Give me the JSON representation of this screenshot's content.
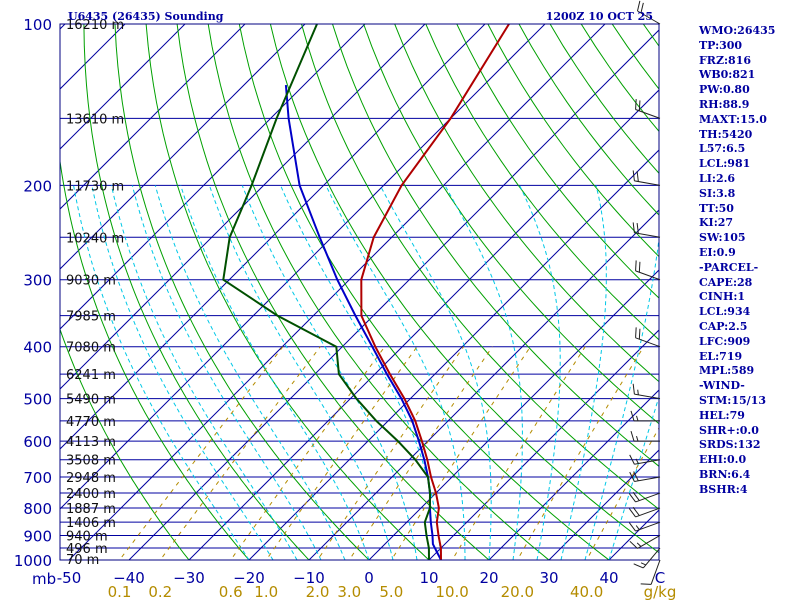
{
  "header": {
    "station": "U6435 (26435) Sounding",
    "time": "1200Z 10 OCT 25"
  },
  "colors": {
    "isobar": "#0000a0",
    "isotherm": "#0000a0",
    "dry_adiabat": "#00a000",
    "moist_adiabat": "#00c8e6",
    "mixing_ratio": "#b48c00",
    "temperature": "#b00000",
    "dewpoint": "#005000",
    "parcel": "#0000c8",
    "wind": "#202020"
  },
  "chart_data": {
    "type": "skew-t",
    "title": "U6435 (26435) Sounding",
    "x_unit": "°C",
    "y_unit": "mb",
    "xlim": [
      -50,
      50
    ],
    "ylim": [
      1000,
      100
    ],
    "pressure_levels": [
      1000,
      900,
      800,
      700,
      600,
      500,
      400,
      300,
      200,
      100
    ],
    "pressure_tick_labels": [
      "1000",
      "900",
      "800",
      "700",
      "600",
      "500",
      "400",
      "300",
      "200",
      "100"
    ],
    "pressure_axis_unit_label": "mb",
    "temperature_ticks": [
      -50,
      -40,
      -30,
      -20,
      -10,
      0,
      10,
      20,
      30,
      40
    ],
    "temperature_tick_labels": [
      "-50",
      "−40",
      "−30",
      "−20",
      "−10",
      "0",
      "10",
      "20",
      "30",
      "40"
    ],
    "mixing_ratio_values": [
      0.1,
      0.2,
      0.6,
      1.0,
      2.0,
      3.0,
      5.0,
      10.0,
      20.0,
      40.0
    ],
    "mixing_ratio_labels": [
      "0.1",
      "0.2",
      "0.6",
      "1.0",
      "2.0",
      "3.0",
      "5.0",
      "10.0",
      "20.0",
      "40.0"
    ],
    "mixing_ratio_unit_label": "g/kg",
    "height_levels": [
      {
        "p": 996,
        "label": "70 m"
      },
      {
        "p": 950,
        "label": "496 m"
      },
      {
        "p": 900,
        "label": "940 m"
      },
      {
        "p": 850,
        "label": "1406 m"
      },
      {
        "p": 800,
        "label": "1887 m"
      },
      {
        "p": 750,
        "label": "2400 m"
      },
      {
        "p": 700,
        "label": "2948 m"
      },
      {
        "p": 650,
        "label": "3508 m"
      },
      {
        "p": 600,
        "label": "4113 m"
      },
      {
        "p": 550,
        "label": "4770 m"
      },
      {
        "p": 500,
        "label": "5490 m"
      },
      {
        "p": 450,
        "label": "6241 m"
      },
      {
        "p": 400,
        "label": "7080 m"
      },
      {
        "p": 350,
        "label": "7985 m"
      },
      {
        "p": 300,
        "label": "9030 m"
      },
      {
        "p": 250,
        "label": "10240 m"
      },
      {
        "p": 200,
        "label": "11730 m"
      },
      {
        "p": 150,
        "label": "13610 m"
      },
      {
        "p": 100,
        "label": "16210 m"
      }
    ],
    "temperature_profile": [
      {
        "p": 1000,
        "t": 12.0
      },
      {
        "p": 950,
        "t": 10.0
      },
      {
        "p": 900,
        "t": 7.5
      },
      {
        "p": 850,
        "t": 5.0
      },
      {
        "p": 800,
        "t": 3.0
      },
      {
        "p": 750,
        "t": 0.0
      },
      {
        "p": 700,
        "t": -3.5
      },
      {
        "p": 650,
        "t": -7.0
      },
      {
        "p": 600,
        "t": -11.0
      },
      {
        "p": 550,
        "t": -15.5
      },
      {
        "p": 500,
        "t": -21.0
      },
      {
        "p": 450,
        "t": -27.5
      },
      {
        "p": 400,
        "t": -34.5
      },
      {
        "p": 350,
        "t": -42.0
      },
      {
        "p": 300,
        "t": -48.0
      },
      {
        "p": 250,
        "t": -53.0
      },
      {
        "p": 200,
        "t": -57.0
      },
      {
        "p": 150,
        "t": -60.0
      },
      {
        "p": 100,
        "t": -66.0
      }
    ],
    "dewpoint_profile": [
      {
        "p": 1000,
        "t": 10.0
      },
      {
        "p": 950,
        "t": 8.0
      },
      {
        "p": 900,
        "t": 5.5
      },
      {
        "p": 850,
        "t": 3.0
      },
      {
        "p": 800,
        "t": 1.5
      },
      {
        "p": 750,
        "t": -1.0
      },
      {
        "p": 700,
        "t": -4.0
      },
      {
        "p": 650,
        "t": -9.0
      },
      {
        "p": 600,
        "t": -15.0
      },
      {
        "p": 550,
        "t": -22.0
      },
      {
        "p": 500,
        "t": -29.0
      },
      {
        "p": 450,
        "t": -36.0
      },
      {
        "p": 400,
        "t": -41.0
      },
      {
        "p": 350,
        "t": -56.0
      },
      {
        "p": 300,
        "t": -71.0
      },
      {
        "p": 250,
        "t": -77.0
      },
      {
        "p": 200,
        "t": -82.0
      },
      {
        "p": 150,
        "t": -89.0
      },
      {
        "p": 100,
        "t": -98.0
      }
    ],
    "parcel_profile": [
      {
        "p": 1000,
        "t": 12.0
      },
      {
        "p": 950,
        "t": 9.0
      },
      {
        "p": 934,
        "t": 8.0
      },
      {
        "p": 900,
        "t": 6.5
      },
      {
        "p": 850,
        "t": 4.0
      },
      {
        "p": 800,
        "t": 1.5
      },
      {
        "p": 750,
        "t": -1.0
      },
      {
        "p": 700,
        "t": -4.0
      },
      {
        "p": 650,
        "t": -7.5
      },
      {
        "p": 600,
        "t": -11.5
      },
      {
        "p": 550,
        "t": -16.0
      },
      {
        "p": 500,
        "t": -21.5
      },
      {
        "p": 450,
        "t": -28.0
      },
      {
        "p": 400,
        "t": -35.0
      },
      {
        "p": 350,
        "t": -43.0
      },
      {
        "p": 300,
        "t": -52.0
      },
      {
        "p": 250,
        "t": -62.0
      },
      {
        "p": 200,
        "t": -74.0
      },
      {
        "p": 150,
        "t": -87.0
      },
      {
        "p": 130,
        "t": -93.0
      }
    ],
    "wind_barbs": [
      {
        "p": 1000,
        "dir": 200,
        "kt": 10
      },
      {
        "p": 950,
        "dir": 220,
        "kt": 15
      },
      {
        "p": 900,
        "dir": 240,
        "kt": 15
      },
      {
        "p": 850,
        "dir": 250,
        "kt": 15
      },
      {
        "p": 800,
        "dir": 250,
        "kt": 20
      },
      {
        "p": 750,
        "dir": 250,
        "kt": 20
      },
      {
        "p": 700,
        "dir": 260,
        "kt": 20
      },
      {
        "p": 650,
        "dir": 260,
        "kt": 15
      },
      {
        "p": 600,
        "dir": 270,
        "kt": 15
      },
      {
        "p": 550,
        "dir": 270,
        "kt": 15
      },
      {
        "p": 500,
        "dir": 280,
        "kt": 15
      },
      {
        "p": 400,
        "dir": 290,
        "kt": 20
      },
      {
        "p": 300,
        "dir": 290,
        "kt": 20
      },
      {
        "p": 250,
        "dir": 280,
        "kt": 20
      },
      {
        "p": 200,
        "dir": 280,
        "kt": 20
      },
      {
        "p": 150,
        "dir": 290,
        "kt": 20
      },
      {
        "p": 100,
        "dir": 300,
        "kt": 20
      }
    ]
  },
  "indices": [
    "WMO:26435",
    "TP:300",
    "FRZ:816",
    "WB0:821",
    "PW:0.80",
    "RH:88.9",
    "MAXT:15.0",
    "TH:5420",
    "L57:6.5",
    "LCL:981",
    "LI:2.6",
    "SI:3.8",
    "TT:50",
    "KI:27",
    "SW:105",
    "EI:0.9",
    "-PARCEL-",
    "CAPE:28",
    "CINH:1",
    "LCL:934",
    "CAP:2.5",
    "LFC:909",
    "EL:719",
    "MPL:589",
    "-WIND-",
    "STM:15/13",
    "HEL:79",
    "SHR+:0.0",
    "SRDS:132",
    "EHI:0.0",
    "BRN:6.4",
    "BSHR:4"
  ]
}
